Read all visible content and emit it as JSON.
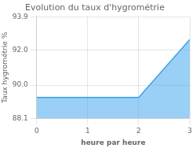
{
  "chart_data": {
    "type": "area",
    "title": "Evolution du taux d'hygrométrie",
    "xlabel": "heure par heure",
    "ylabel": "Taux hygrométrie %",
    "x": [
      0,
      2,
      3
    ],
    "values": [
      89.3,
      89.3,
      92.6
    ],
    "xlim": [
      0,
      3
    ],
    "xticks": [
      0,
      1,
      2,
      3
    ],
    "ylim": [
      88.1,
      93.9
    ],
    "yticks": [
      88.1,
      {
        "value": 90,
        "label": "90.0"
      },
      {
        "value": 92,
        "label": "92.0"
      },
      93.9
    ],
    "grid": true
  }
}
